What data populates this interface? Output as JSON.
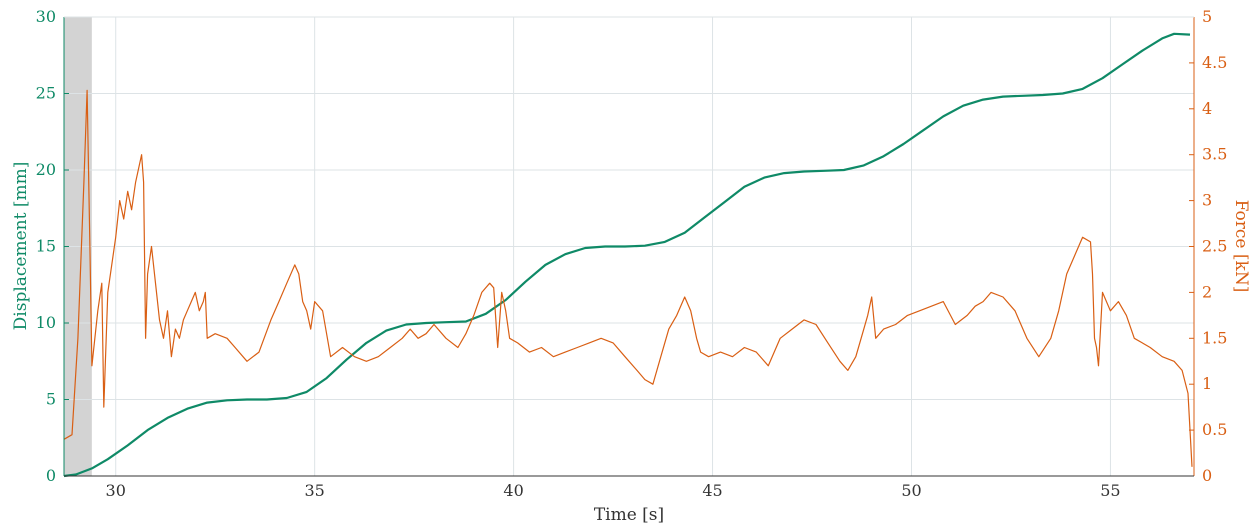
{
  "chart_data": {
    "type": "line",
    "title": "",
    "xlabel": "Time [s]",
    "ylabel": "Displacement [mm]",
    "y2label": "Force [kN]",
    "xlim": [
      28.7,
      57.1
    ],
    "ylim": [
      0,
      30
    ],
    "y2lim": [
      0,
      5
    ],
    "grid": true,
    "legend": "none",
    "x_ticks": [
      "30",
      "35",
      "40",
      "45",
      "50",
      "55"
    ],
    "y_ticks": [
      "0",
      "5",
      "10",
      "15",
      "20",
      "25",
      "30"
    ],
    "y2_ticks": [
      "0",
      "0.5",
      "1",
      "1.5",
      "2",
      "2.5",
      "3",
      "3.5",
      "4",
      "4.5",
      "5"
    ],
    "shaded_region": {
      "x": [
        28.7,
        29.4
      ],
      "color": "#d3d3d3"
    },
    "series": [
      {
        "axis": "left",
        "color": "#0f8a67",
        "x": [
          28.7,
          29.0,
          29.4,
          29.8,
          30.3,
          30.8,
          31.3,
          31.8,
          32.3,
          32.8,
          33.3,
          33.8,
          34.3,
          34.8,
          35.3,
          35.8,
          36.3,
          36.8,
          37.3,
          37.8,
          38.3,
          38.8,
          39.3,
          39.8,
          40.3,
          40.8,
          41.3,
          41.8,
          42.3,
          42.8,
          43.3,
          43.8,
          44.3,
          44.8,
          45.3,
          45.8,
          46.3,
          46.8,
          47.3,
          47.8,
          48.3,
          48.8,
          49.3,
          49.8,
          50.3,
          50.8,
          51.3,
          51.8,
          52.3,
          52.8,
          53.3,
          53.8,
          54.3,
          54.8,
          55.3,
          55.8,
          56.3,
          56.6,
          57.0
        ],
        "y": [
          0.0,
          0.1,
          0.5,
          1.1,
          2.0,
          3.0,
          3.8,
          4.4,
          4.8,
          4.95,
          5.0,
          5.0,
          5.1,
          5.5,
          6.4,
          7.6,
          8.7,
          9.5,
          9.9,
          10.0,
          10.05,
          10.1,
          10.6,
          11.5,
          12.7,
          13.8,
          14.5,
          14.9,
          15.0,
          15.0,
          15.05,
          15.3,
          15.9,
          16.9,
          17.9,
          18.9,
          19.5,
          19.8,
          19.9,
          19.95,
          20.0,
          20.3,
          20.9,
          21.7,
          22.6,
          23.5,
          24.2,
          24.6,
          24.8,
          24.85,
          24.9,
          25.0,
          25.3,
          26.0,
          26.9,
          27.8,
          28.6,
          28.9,
          28.85
        ]
      },
      {
        "axis": "right",
        "color": "#d95f14",
        "x": [
          28.7,
          28.9,
          29.05,
          29.2,
          29.28,
          29.35,
          29.4,
          29.55,
          29.65,
          29.7,
          29.8,
          30.0,
          30.1,
          30.2,
          30.3,
          30.4,
          30.5,
          30.6,
          30.65,
          30.7,
          30.75,
          30.8,
          30.9,
          31.0,
          31.1,
          31.2,
          31.3,
          31.4,
          31.5,
          31.6,
          31.7,
          31.8,
          31.9,
          32.0,
          32.1,
          32.2,
          32.25,
          32.3,
          32.5,
          32.8,
          33.0,
          33.3,
          33.6,
          33.9,
          34.1,
          34.3,
          34.5,
          34.6,
          34.7,
          34.8,
          34.9,
          35.0,
          35.2,
          35.4,
          35.7,
          36.0,
          36.3,
          36.6,
          36.9,
          37.2,
          37.4,
          37.6,
          37.8,
          38.0,
          38.3,
          38.6,
          38.8,
          39.0,
          39.2,
          39.4,
          39.5,
          39.6,
          39.7,
          39.8,
          39.9,
          40.1,
          40.4,
          40.7,
          41.0,
          41.3,
          41.6,
          41.9,
          42.2,
          42.5,
          42.8,
          43.1,
          43.3,
          43.5,
          43.7,
          43.9,
          44.1,
          44.3,
          44.45,
          44.6,
          44.7,
          44.9,
          45.2,
          45.5,
          45.8,
          46.1,
          46.4,
          46.7,
          47.0,
          47.3,
          47.6,
          47.9,
          48.2,
          48.4,
          48.6,
          48.8,
          48.9,
          49.0,
          49.1,
          49.3,
          49.6,
          49.9,
          50.2,
          50.5,
          50.8,
          51.1,
          51.4,
          51.6,
          51.8,
          52.0,
          52.3,
          52.6,
          52.9,
          53.2,
          53.5,
          53.7,
          53.9,
          54.1,
          54.3,
          54.5,
          54.55,
          54.6,
          54.65,
          54.7,
          54.8,
          55.0,
          55.2,
          55.4,
          55.6,
          55.8,
          56.0,
          56.3,
          56.6,
          56.8,
          56.95,
          57.05
        ],
        "y": [
          0.4,
          0.45,
          1.5,
          3.2,
          4.2,
          2.5,
          1.2,
          1.8,
          2.1,
          0.75,
          2.0,
          2.6,
          3.0,
          2.8,
          3.1,
          2.9,
          3.2,
          3.4,
          3.5,
          3.2,
          1.5,
          2.2,
          2.5,
          2.1,
          1.7,
          1.5,
          1.8,
          1.3,
          1.6,
          1.5,
          1.7,
          1.8,
          1.9,
          2.0,
          1.8,
          1.9,
          2.0,
          1.5,
          1.55,
          1.5,
          1.4,
          1.25,
          1.35,
          1.7,
          1.9,
          2.1,
          2.3,
          2.2,
          1.9,
          1.8,
          1.6,
          1.9,
          1.8,
          1.3,
          1.4,
          1.3,
          1.25,
          1.3,
          1.4,
          1.5,
          1.6,
          1.5,
          1.55,
          1.65,
          1.5,
          1.4,
          1.55,
          1.75,
          2.0,
          2.1,
          2.05,
          1.4,
          2.0,
          1.8,
          1.5,
          1.45,
          1.35,
          1.4,
          1.3,
          1.35,
          1.4,
          1.45,
          1.5,
          1.45,
          1.3,
          1.15,
          1.05,
          1.0,
          1.3,
          1.6,
          1.75,
          1.95,
          1.8,
          1.5,
          1.35,
          1.3,
          1.35,
          1.3,
          1.4,
          1.35,
          1.2,
          1.5,
          1.6,
          1.7,
          1.65,
          1.45,
          1.25,
          1.15,
          1.3,
          1.6,
          1.75,
          1.95,
          1.5,
          1.6,
          1.65,
          1.75,
          1.8,
          1.85,
          1.9,
          1.65,
          1.75,
          1.85,
          1.9,
          2.0,
          1.95,
          1.8,
          1.5,
          1.3,
          1.5,
          1.8,
          2.2,
          2.4,
          2.6,
          2.55,
          2.2,
          1.5,
          1.4,
          1.2,
          2.0,
          1.8,
          1.9,
          1.75,
          1.5,
          1.45,
          1.4,
          1.3,
          1.25,
          1.15,
          0.9,
          0.1
        ]
      }
    ]
  }
}
